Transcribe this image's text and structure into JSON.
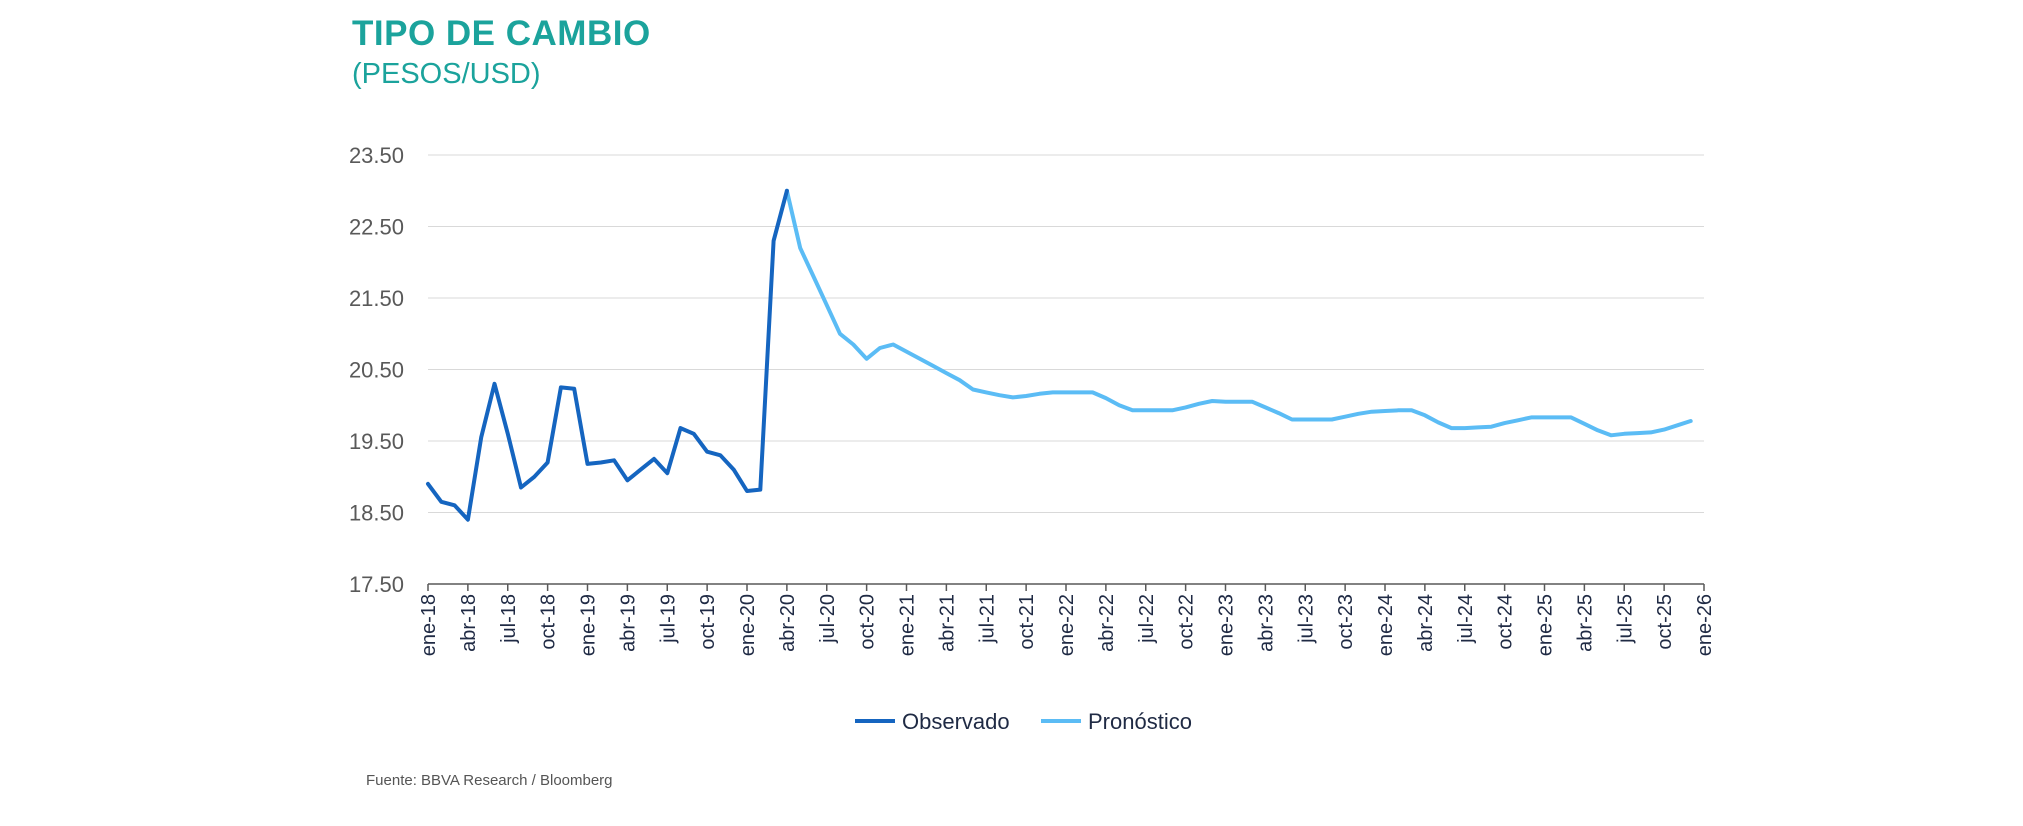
{
  "chart_data": {
    "type": "line",
    "title": "TIPO DE CAMBIO",
    "subtitle": "(PESOS/USD)",
    "source": "Fuente: BBVA Research / Bloomberg",
    "ylim": [
      17.5,
      23.5
    ],
    "y_ticks": [
      "23.50",
      "22.50",
      "21.50",
      "20.50",
      "19.50",
      "18.50",
      "17.50"
    ],
    "y_tick_values": [
      23.5,
      22.5,
      21.5,
      20.5,
      19.5,
      18.5,
      17.5
    ],
    "x_tick_labels": [
      "ene-18",
      "abr-18",
      "jul-18",
      "oct-18",
      "ene-19",
      "abr-19",
      "jul-19",
      "oct-19",
      "ene-20",
      "abr-20",
      "jul-20",
      "oct-20",
      "ene-21",
      "abr-21",
      "jul-21",
      "oct-21",
      "ene-22",
      "abr-22",
      "jul-22",
      "oct-22",
      "ene-23",
      "abr-23",
      "jul-23",
      "oct-23",
      "ene-24",
      "abr-24",
      "jul-24",
      "oct-24",
      "ene-25",
      "abr-25",
      "jul-25",
      "oct-25",
      "ene-26"
    ],
    "months_total": 97,
    "grid": true,
    "legend_position": "bottom",
    "series": [
      {
        "name": "Observado",
        "color": "#1565c0",
        "start_month": 0,
        "values": [
          18.9,
          18.65,
          18.6,
          18.4,
          19.55,
          20.3,
          19.6,
          18.85,
          19.0,
          19.2,
          20.25,
          20.23,
          19.18,
          19.2,
          19.23,
          18.95,
          19.1,
          19.25,
          19.05,
          19.68,
          19.6,
          19.35,
          19.3,
          19.1,
          18.8,
          18.82,
          22.3,
          23.0
        ]
      },
      {
        "name": "Pronóstico",
        "color": "#5bbcf5",
        "start_month": 27,
        "values": [
          23.0,
          22.2,
          21.8,
          21.4,
          21.0,
          20.85,
          20.65,
          20.8,
          20.85,
          20.75,
          20.65,
          20.55,
          20.45,
          20.35,
          20.22,
          20.18,
          20.14,
          20.11,
          20.13,
          20.16,
          20.18,
          20.18,
          20.18,
          20.18,
          20.1,
          20.0,
          19.93,
          19.93,
          19.93,
          19.93,
          19.97,
          20.02,
          20.06,
          20.05,
          20.05,
          20.05,
          19.97,
          19.89,
          19.8,
          19.8,
          19.8,
          19.8,
          19.84,
          19.88,
          19.91,
          19.92,
          19.93,
          19.93,
          19.86,
          19.76,
          19.68,
          19.68,
          19.69,
          19.7,
          19.75,
          19.79,
          19.83,
          19.83,
          19.83,
          19.83,
          19.74,
          19.65,
          19.58,
          19.6,
          19.61,
          19.62,
          19.66,
          19.72,
          19.78
        ]
      }
    ]
  }
}
